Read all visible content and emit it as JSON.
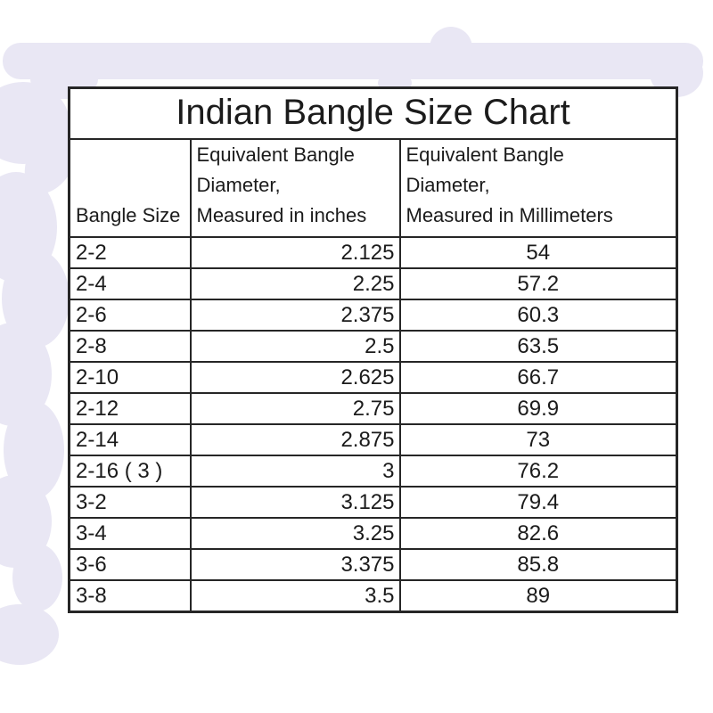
{
  "page": {
    "background_color": "#ffffff",
    "watermark_color": "#e9e7f4"
  },
  "chart_data": {
    "type": "table",
    "title": "Indian Bangle Size Chart",
    "columns": [
      {
        "id": "bangle_size",
        "header_lines": [
          "Bangle Size"
        ],
        "align": "left"
      },
      {
        "id": "diameter_inches",
        "header_lines": [
          "Equivalent Bangle",
          "Diameter,",
          "Measured in inches"
        ],
        "align": "right"
      },
      {
        "id": "diameter_mm",
        "header_lines": [
          "Equivalent Bangle",
          "Diameter,",
          "Measured in Millimeters"
        ],
        "align": "center"
      }
    ],
    "rows": [
      [
        "2-2",
        "2.125",
        "54"
      ],
      [
        "2-4",
        "2.25",
        "57.2"
      ],
      [
        "2-6",
        "2.375",
        "60.3"
      ],
      [
        "2-8",
        "2.5",
        "63.5"
      ],
      [
        "2-10",
        "2.625",
        "66.7"
      ],
      [
        "2-12",
        "2.75",
        "69.9"
      ],
      [
        "2-14",
        "2.875",
        "73"
      ],
      [
        "2-16 ( 3 )",
        "3",
        "76.2"
      ],
      [
        "3-2",
        "3.125",
        "79.4"
      ],
      [
        "3-4",
        "3.25",
        "82.6"
      ],
      [
        "3-6",
        "3.375",
        "85.8"
      ],
      [
        "3-8",
        "3.5",
        "89"
      ]
    ],
    "border_color": "#262626",
    "text_color": "#1b1b1b",
    "layout_hints": {
      "grid": true,
      "title_position": "top-center"
    }
  }
}
